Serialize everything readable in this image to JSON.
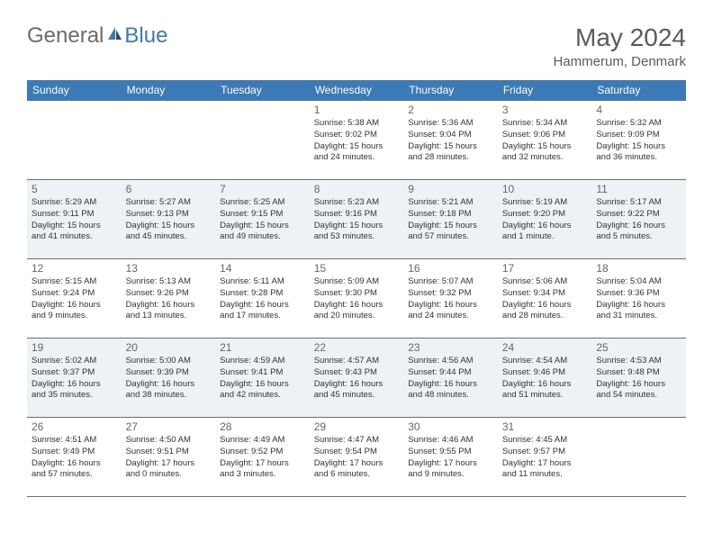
{
  "logo": {
    "word1": "General",
    "word2": "Blue"
  },
  "title": "May 2024",
  "location": "Hammerum, Denmark",
  "colors": {
    "header_bg": "#3b79b7",
    "header_text": "#ffffff",
    "border": "#3b79b7",
    "shade_bg": "#eef2f5",
    "text": "#333333",
    "daynum": "#666666",
    "logo_gray": "#6a6a6a",
    "logo_blue": "#3b79b7"
  },
  "weekdays": [
    "Sunday",
    "Monday",
    "Tuesday",
    "Wednesday",
    "Thursday",
    "Friday",
    "Saturday"
  ],
  "weeks": [
    [
      {
        "n": "",
        "sunrise": "",
        "sunset": "",
        "daylight": ""
      },
      {
        "n": "",
        "sunrise": "",
        "sunset": "",
        "daylight": ""
      },
      {
        "n": "",
        "sunrise": "",
        "sunset": "",
        "daylight": ""
      },
      {
        "n": "1",
        "sunrise": "5:38 AM",
        "sunset": "9:02 PM",
        "daylight": "15 hours and 24 minutes."
      },
      {
        "n": "2",
        "sunrise": "5:36 AM",
        "sunset": "9:04 PM",
        "daylight": "15 hours and 28 minutes."
      },
      {
        "n": "3",
        "sunrise": "5:34 AM",
        "sunset": "9:06 PM",
        "daylight": "15 hours and 32 minutes."
      },
      {
        "n": "4",
        "sunrise": "5:32 AM",
        "sunset": "9:09 PM",
        "daylight": "15 hours and 36 minutes."
      }
    ],
    [
      {
        "n": "5",
        "sunrise": "5:29 AM",
        "sunset": "9:11 PM",
        "daylight": "15 hours and 41 minutes."
      },
      {
        "n": "6",
        "sunrise": "5:27 AM",
        "sunset": "9:13 PM",
        "daylight": "15 hours and 45 minutes."
      },
      {
        "n": "7",
        "sunrise": "5:25 AM",
        "sunset": "9:15 PM",
        "daylight": "15 hours and 49 minutes."
      },
      {
        "n": "8",
        "sunrise": "5:23 AM",
        "sunset": "9:16 PM",
        "daylight": "15 hours and 53 minutes."
      },
      {
        "n": "9",
        "sunrise": "5:21 AM",
        "sunset": "9:18 PM",
        "daylight": "15 hours and 57 minutes."
      },
      {
        "n": "10",
        "sunrise": "5:19 AM",
        "sunset": "9:20 PM",
        "daylight": "16 hours and 1 minute."
      },
      {
        "n": "11",
        "sunrise": "5:17 AM",
        "sunset": "9:22 PM",
        "daylight": "16 hours and 5 minutes."
      }
    ],
    [
      {
        "n": "12",
        "sunrise": "5:15 AM",
        "sunset": "9:24 PM",
        "daylight": "16 hours and 9 minutes."
      },
      {
        "n": "13",
        "sunrise": "5:13 AM",
        "sunset": "9:26 PM",
        "daylight": "16 hours and 13 minutes."
      },
      {
        "n": "14",
        "sunrise": "5:11 AM",
        "sunset": "9:28 PM",
        "daylight": "16 hours and 17 minutes."
      },
      {
        "n": "15",
        "sunrise": "5:09 AM",
        "sunset": "9:30 PM",
        "daylight": "16 hours and 20 minutes."
      },
      {
        "n": "16",
        "sunrise": "5:07 AM",
        "sunset": "9:32 PM",
        "daylight": "16 hours and 24 minutes."
      },
      {
        "n": "17",
        "sunrise": "5:06 AM",
        "sunset": "9:34 PM",
        "daylight": "16 hours and 28 minutes."
      },
      {
        "n": "18",
        "sunrise": "5:04 AM",
        "sunset": "9:36 PM",
        "daylight": "16 hours and 31 minutes."
      }
    ],
    [
      {
        "n": "19",
        "sunrise": "5:02 AM",
        "sunset": "9:37 PM",
        "daylight": "16 hours and 35 minutes."
      },
      {
        "n": "20",
        "sunrise": "5:00 AM",
        "sunset": "9:39 PM",
        "daylight": "16 hours and 38 minutes."
      },
      {
        "n": "21",
        "sunrise": "4:59 AM",
        "sunset": "9:41 PM",
        "daylight": "16 hours and 42 minutes."
      },
      {
        "n": "22",
        "sunrise": "4:57 AM",
        "sunset": "9:43 PM",
        "daylight": "16 hours and 45 minutes."
      },
      {
        "n": "23",
        "sunrise": "4:56 AM",
        "sunset": "9:44 PM",
        "daylight": "16 hours and 48 minutes."
      },
      {
        "n": "24",
        "sunrise": "4:54 AM",
        "sunset": "9:46 PM",
        "daylight": "16 hours and 51 minutes."
      },
      {
        "n": "25",
        "sunrise": "4:53 AM",
        "sunset": "9:48 PM",
        "daylight": "16 hours and 54 minutes."
      }
    ],
    [
      {
        "n": "26",
        "sunrise": "4:51 AM",
        "sunset": "9:49 PM",
        "daylight": "16 hours and 57 minutes."
      },
      {
        "n": "27",
        "sunrise": "4:50 AM",
        "sunset": "9:51 PM",
        "daylight": "17 hours and 0 minutes."
      },
      {
        "n": "28",
        "sunrise": "4:49 AM",
        "sunset": "9:52 PM",
        "daylight": "17 hours and 3 minutes."
      },
      {
        "n": "29",
        "sunrise": "4:47 AM",
        "sunset": "9:54 PM",
        "daylight": "17 hours and 6 minutes."
      },
      {
        "n": "30",
        "sunrise": "4:46 AM",
        "sunset": "9:55 PM",
        "daylight": "17 hours and 9 minutes."
      },
      {
        "n": "31",
        "sunrise": "4:45 AM",
        "sunset": "9:57 PM",
        "daylight": "17 hours and 11 minutes."
      },
      {
        "n": "",
        "sunrise": "",
        "sunset": "",
        "daylight": ""
      }
    ]
  ],
  "labels": {
    "sunrise": "Sunrise:",
    "sunset": "Sunset:",
    "daylight": "Daylight:"
  }
}
